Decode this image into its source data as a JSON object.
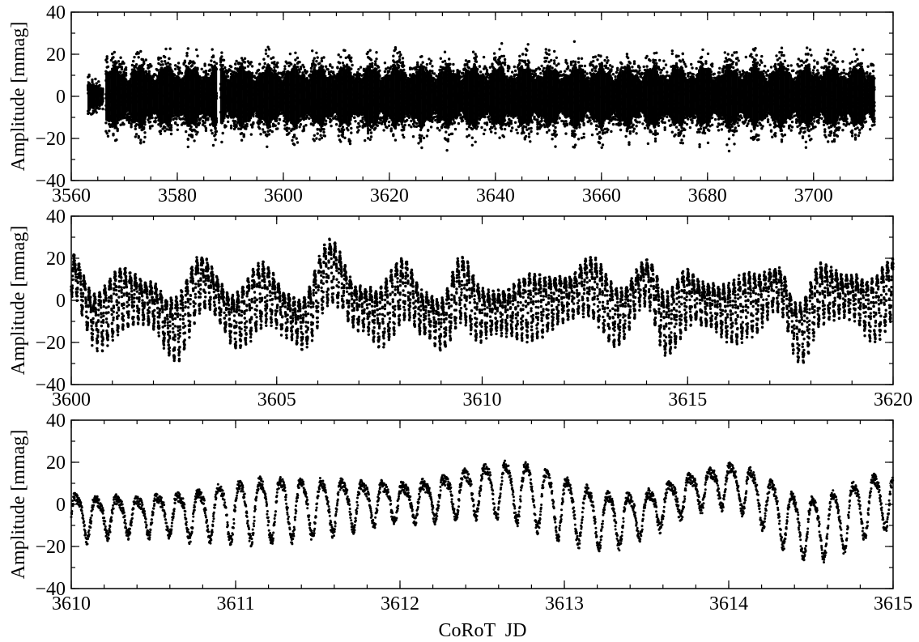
{
  "chart_data": [
    {
      "type": "scatter",
      "xlim": [
        3560,
        3715
      ],
      "ylim": [
        -40,
        40
      ],
      "ylabel": "Amplitude [mmag]",
      "xlabel": "",
      "x_major_ticks": [
        "3560",
        "3580",
        "3600",
        "3620",
        "3640",
        "3660",
        "3680",
        "3700"
      ],
      "y_major_ticks": [
        "-40",
        "-20",
        "0",
        "20",
        "40"
      ],
      "grid": false,
      "series": [
        {
          "description_of_data": "dense light curve, sampled representatively",
          "segments": [
            {
              "x_start": 3563.0,
              "x_end": 3566.0,
              "envelope": 12
            },
            {
              "x_start": 3566.5,
              "x_end": 3587.5,
              "envelope": 26
            },
            {
              "x_start": 3588.0,
              "x_end": 3711.5,
              "envelope": 26
            }
          ]
        }
      ]
    },
    {
      "type": "scatter",
      "xlim": [
        3600,
        3620
      ],
      "ylim": [
        -40,
        40
      ],
      "ylabel": "Amplitude [mmag]",
      "xlabel": "",
      "x_major_ticks": [
        "3600",
        "3605",
        "3610",
        "3615",
        "3620"
      ],
      "y_major_ticks": [
        "-40",
        "-20",
        "0",
        "20",
        "40"
      ],
      "grid": false
    },
    {
      "type": "scatter",
      "xlim": [
        3610,
        3615
      ],
      "ylim": [
        -40,
        40
      ],
      "ylabel": "Amplitude [mmag]",
      "xlabel": "CoRoT  JD",
      "x_major_ticks": [
        "3610",
        "3611",
        "3612",
        "3613",
        "3614",
        "3615"
      ],
      "y_major_ticks": [
        "-40",
        "-20",
        "0",
        "20",
        "40"
      ],
      "grid": false
    }
  ],
  "signal": {
    "short_period_days": 0.1245,
    "slow_wave_points": [
      [
        3600.0,
        14
      ],
      [
        3600.6,
        -8
      ],
      [
        3601.3,
        3
      ],
      [
        3601.9,
        0
      ],
      [
        3602.5,
        -12
      ],
      [
        3603.2,
        10
      ],
      [
        3604.0,
        -8
      ],
      [
        3604.7,
        5
      ],
      [
        3605.3,
        -6
      ],
      [
        3605.6,
        -10
      ],
      [
        3606.3,
        16
      ],
      [
        3607.0,
        -2
      ],
      [
        3607.5,
        -6
      ],
      [
        3608.1,
        7
      ],
      [
        3608.6,
        -5
      ],
      [
        3609.0,
        -10
      ],
      [
        3609.5,
        7
      ],
      [
        3610.0,
        -5
      ],
      [
        3610.6,
        -4
      ],
      [
        3611.3,
        -1
      ],
      [
        3612.0,
        2
      ],
      [
        3612.6,
        8
      ],
      [
        3613.3,
        -6
      ],
      [
        3614.0,
        10
      ],
      [
        3614.5,
        -10
      ],
      [
        3615.0,
        3
      ],
      [
        3615.5,
        -1
      ],
      [
        3616.0,
        -4
      ],
      [
        3616.6,
        0
      ],
      [
        3617.2,
        7
      ],
      [
        3617.7,
        -14
      ],
      [
        3618.3,
        5
      ],
      [
        3619.0,
        3
      ],
      [
        3619.5,
        -3
      ],
      [
        3620.0,
        7
      ]
    ]
  }
}
